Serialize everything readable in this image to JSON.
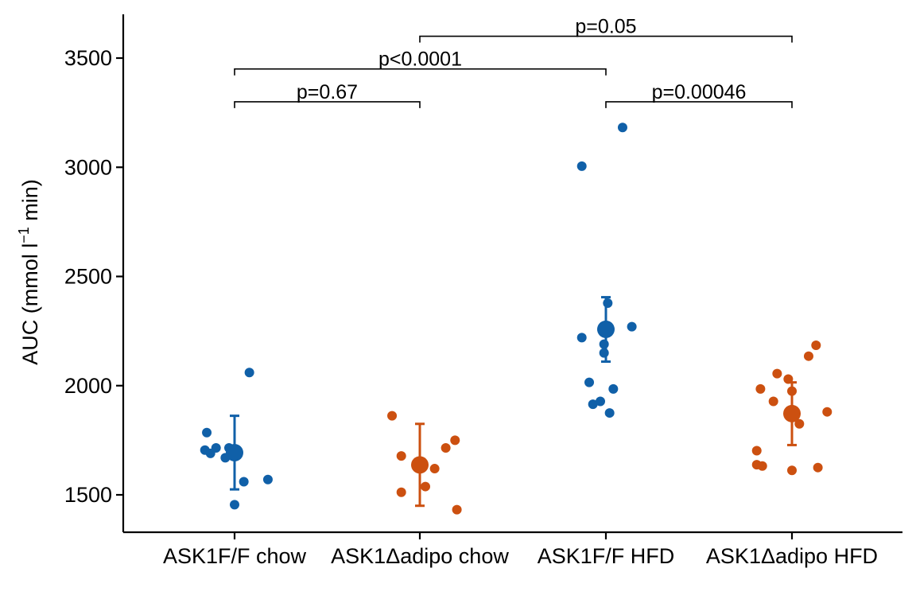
{
  "chart_data": {
    "type": "scatter",
    "xlabel": "",
    "ylabel": "AUC (mmol l",
    "ylabel_sup": "−1",
    "ylabel_suffix": " min)",
    "ylim": [
      1320,
      3700
    ],
    "yticks": [
      1500,
      2000,
      2500,
      3000,
      3500
    ],
    "grid": false,
    "legend": "none",
    "colors": {
      "blue": "#1060A8",
      "orange": "#CC5010"
    },
    "categories": [
      "ASK1F/F chow",
      "ASK1Δadipo chow",
      "ASK1F/F HFD",
      "ASK1Δadipo HFD"
    ],
    "groups": [
      {
        "category": "ASK1F/F chow",
        "color": "#1060A8",
        "mean": 1693,
        "err_low": 1525,
        "err_high": 1862,
        "points": [
          [
            -0.15,
            1785
          ],
          [
            -0.16,
            1705
          ],
          [
            -0.13,
            1690
          ],
          [
            -0.1,
            1715
          ],
          [
            -0.05,
            1670
          ],
          [
            -0.03,
            1715
          ],
          [
            0.08,
            2060
          ],
          [
            0.05,
            1560
          ],
          [
            0.18,
            1570
          ],
          [
            0.0,
            1455
          ],
          [
            0.0,
            1700
          ]
        ]
      },
      {
        "category": "ASK1Δadipo chow",
        "color": "#CC5010",
        "mean": 1637,
        "err_low": 1450,
        "err_high": 1825,
        "points": [
          [
            -0.15,
            1862
          ],
          [
            -0.1,
            1678
          ],
          [
            -0.1,
            1512
          ],
          [
            0.03,
            1538
          ],
          [
            0.08,
            1620
          ],
          [
            0.14,
            1715
          ],
          [
            0.19,
            1750
          ],
          [
            0.2,
            1432
          ]
        ]
      },
      {
        "category": "ASK1F/F HFD",
        "color": "#1060A8",
        "mean": 2258,
        "err_low": 2110,
        "err_high": 2405,
        "points": [
          [
            -0.13,
            3005
          ],
          [
            0.09,
            3182
          ],
          [
            0.01,
            2378
          ],
          [
            -0.02,
            2255
          ],
          [
            0.14,
            2270
          ],
          [
            -0.13,
            2220
          ],
          [
            -0.01,
            2190
          ],
          [
            -0.01,
            2150
          ],
          [
            -0.09,
            2015
          ],
          [
            0.04,
            1985
          ],
          [
            -0.07,
            1915
          ],
          [
            -0.03,
            1928
          ],
          [
            0.02,
            1875
          ]
        ]
      },
      {
        "category": "ASK1Δadipo HFD",
        "color": "#CC5010",
        "mean": 1872,
        "err_low": 1728,
        "err_high": 2015,
        "points": [
          [
            0.13,
            2185
          ],
          [
            0.09,
            2135
          ],
          [
            -0.08,
            2055
          ],
          [
            -0.02,
            2030
          ],
          [
            -0.17,
            1985
          ],
          [
            -0.1,
            1928
          ],
          [
            0.0,
            1975
          ],
          [
            0.19,
            1880
          ],
          [
            0.04,
            1825
          ],
          [
            -0.19,
            1702
          ],
          [
            -0.19,
            1638
          ],
          [
            -0.16,
            1632
          ],
          [
            0.14,
            1625
          ],
          [
            0.0,
            1612
          ]
        ]
      }
    ],
    "comparisons": [
      {
        "from": 0,
        "to": 1,
        "y": 3300,
        "label": "p=0.67"
      },
      {
        "from": 2,
        "to": 3,
        "y": 3300,
        "label": "p=0.00046"
      },
      {
        "from": 0,
        "to": 2,
        "y": 3450,
        "label": "p<0.0001"
      },
      {
        "from": 1,
        "to": 3,
        "y": 3600,
        "label": "p=0.05"
      }
    ]
  }
}
